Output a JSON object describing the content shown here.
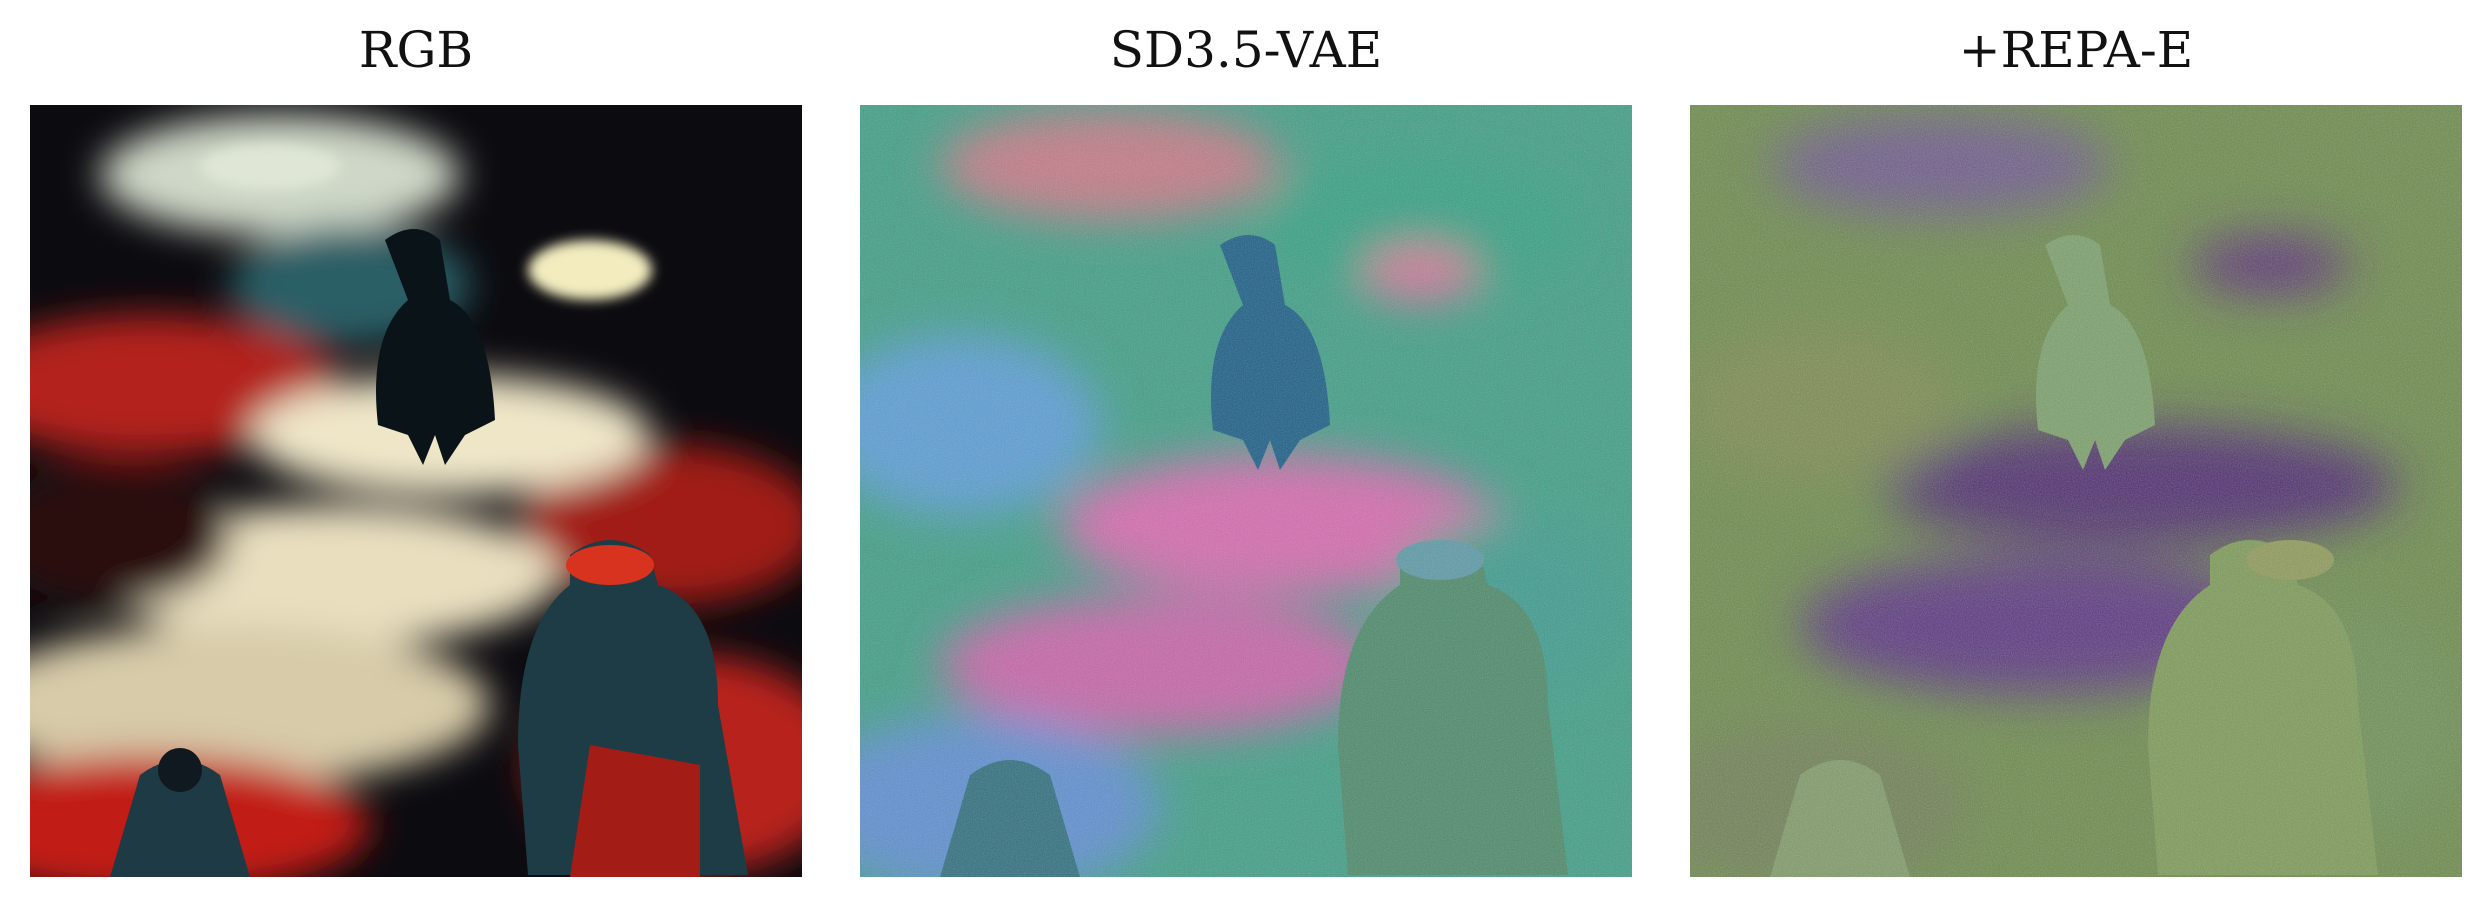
{
  "panels": [
    {
      "title": "RGB",
      "image_desc": "rgb-painting"
    },
    {
      "title": "SD3.5-VAE",
      "image_desc": "sd35-vae-latent-visualization"
    },
    {
      "title": "+REPA-E",
      "image_desc": "repa-e-latent-visualization"
    }
  ]
}
